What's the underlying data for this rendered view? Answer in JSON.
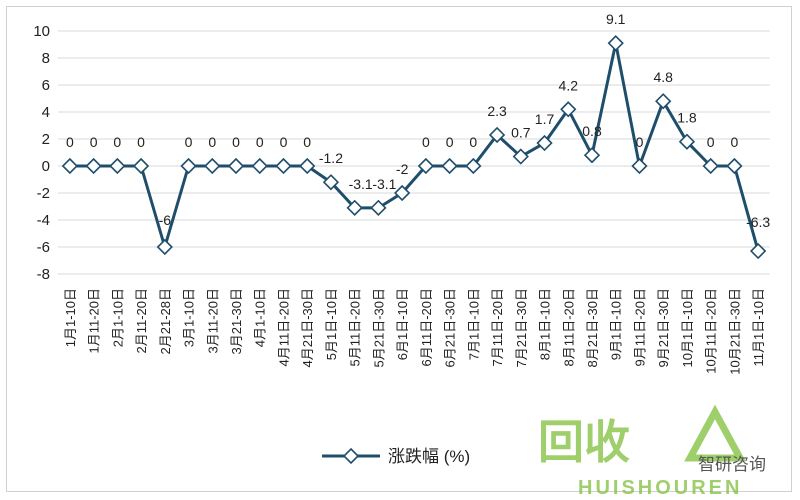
{
  "chart_data": {
    "type": "line",
    "title": "",
    "xlabel": "",
    "ylabel": "",
    "ylim": [
      -8,
      10
    ],
    "yticks": [
      10,
      8,
      6,
      4,
      2,
      0,
      -2,
      -4,
      -6,
      -8
    ],
    "grid": true,
    "legend_position": "bottom",
    "categories": [
      "1月1-10日",
      "1月11-20日",
      "2月1-10日",
      "2月11-20日",
      "2月21-28日",
      "3月1-10日",
      "3月11-20日",
      "3月21-30日",
      "4月1-10日",
      "4月11日-20日",
      "4月21日-30日",
      "5月1日-10日",
      "5月11日-20日",
      "5月21日-30日",
      "6月1日-10日",
      "6月11日-20日",
      "6月21日-30日",
      "7月1日-10日",
      "7月11日-20日",
      "7月21日-30日",
      "8月1日-10日",
      "8月11日-20日",
      "8月21日-30日",
      "9月1日-10日",
      "9月11日-20日",
      "9月21日-30日",
      "10月1日-10日",
      "10月11日-20日",
      "10月21日-30日",
      "11月1日-10日"
    ],
    "series": [
      {
        "name": "涨跌幅 (%)",
        "values": [
          0,
          0,
          0,
          0,
          -6,
          0,
          0,
          0,
          0,
          0,
          0,
          -1.2,
          -3.1,
          -3.1,
          -2,
          0,
          0,
          0,
          2.3,
          0.7,
          1.7,
          4.2,
          0.8,
          9.1,
          0,
          4.8,
          1.8,
          0,
          0,
          -6.3
        ],
        "data_labels": [
          "0",
          "0",
          "0",
          "0",
          "-6",
          "0",
          "0",
          "0",
          "0",
          "0",
          "0",
          "-1.2",
          "-3.1",
          "-3.1",
          "-2",
          "0",
          "0",
          "0",
          "2.3",
          "0.7",
          "1.7",
          "4.2",
          "0.8",
          "9.1",
          "0",
          "4.8",
          "1.8",
          "0",
          "0",
          "-6.3"
        ]
      }
    ],
    "colors": {
      "series": "#1f4e6b",
      "grid": "#d9d9d9",
      "marker_fill": "#ffffff"
    }
  },
  "watermark": {
    "title": "回收",
    "subtitle": "HUISHOUREN",
    "brand": "智研咨询",
    "color": "#7fbf3a"
  }
}
